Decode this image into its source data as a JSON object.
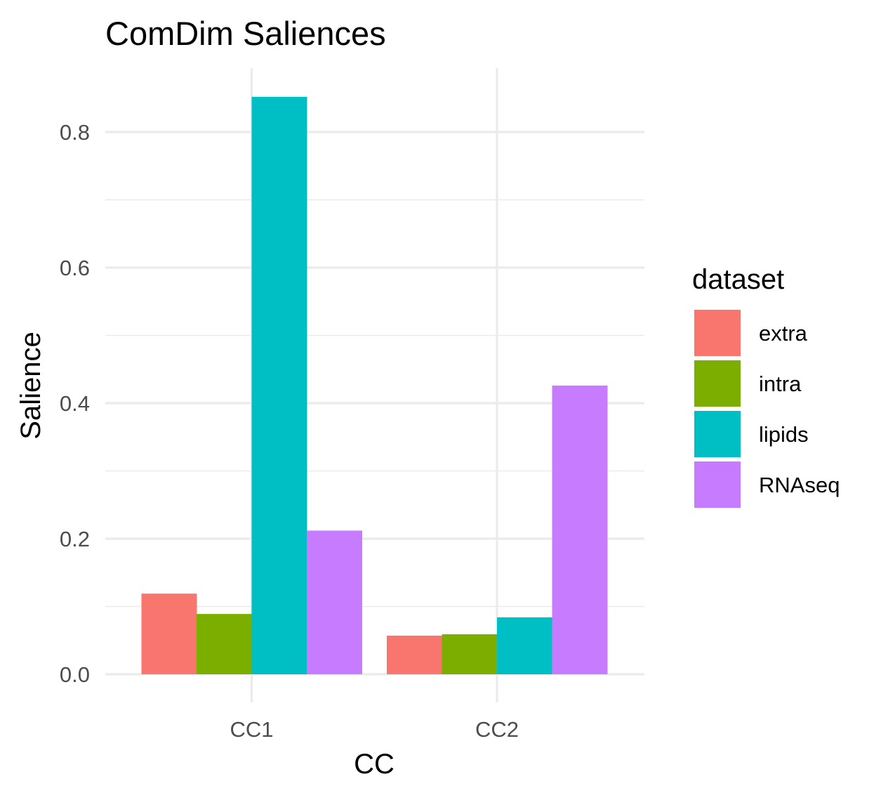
{
  "chart_data": {
    "type": "bar",
    "title": "ComDim Saliences",
    "xlabel": "CC",
    "ylabel": "Salience",
    "categories": [
      "CC1",
      "CC2"
    ],
    "series": [
      {
        "name": "extra",
        "color": "#F8766D",
        "values": [
          0.119,
          0.057
        ]
      },
      {
        "name": "intra",
        "color": "#7CAE00",
        "values": [
          0.089,
          0.059
        ]
      },
      {
        "name": "lipids",
        "color": "#00BFC4",
        "values": [
          0.852,
          0.084
        ]
      },
      {
        "name": "RNAseq",
        "color": "#C77CFF",
        "values": [
          0.212,
          0.426
        ]
      }
    ],
    "ylim": [
      0,
      0.89
    ],
    "yticks": [
      0.0,
      0.2,
      0.4,
      0.6,
      0.8
    ],
    "ytick_labels": [
      "0.0",
      "0.2",
      "0.4",
      "0.6",
      "0.8"
    ],
    "grid": true,
    "legend": {
      "title": "dataset",
      "position": "right"
    },
    "gridline_color": "#EBEBEB"
  }
}
